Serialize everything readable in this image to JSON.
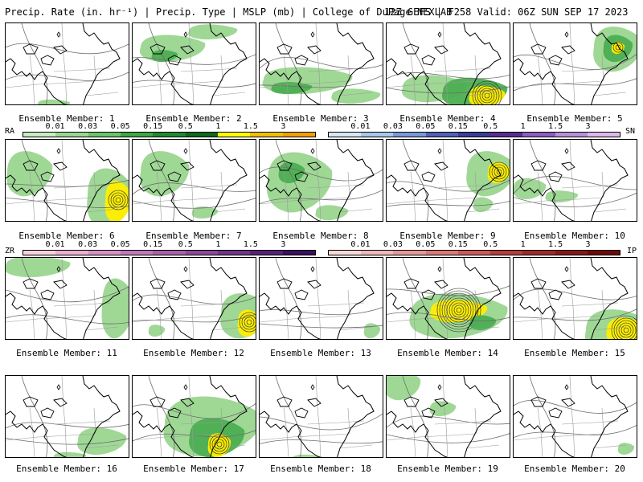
{
  "header": {
    "left_text": "Precip. Rate (in. hr⁻¹) | Precip. Type | MSLP (mb) | College of DuPage NEXLAB",
    "right_text": "12Z GEFS | F258 Valid: 06Z SUN SEP 17 2023"
  },
  "members": [
    "Ensemble Member: 1",
    "Ensemble Member: 2",
    "Ensemble Member: 3",
    "Ensemble Member: 4",
    "Ensemble Member: 5",
    "Ensemble Member: 6",
    "Ensemble Member: 7",
    "Ensemble Member: 8",
    "Ensemble Member: 9",
    "Ensemble Member: 10",
    "Ensemble Member: 11",
    "Ensemble Member: 12",
    "Ensemble Member: 13",
    "Ensemble Member: 14",
    "Ensemble Member: 15",
    "Ensemble Member: 16",
    "Ensemble Member: 17",
    "Ensemble Member: 18",
    "Ensemble Member: 19",
    "Ensemble Member: 20"
  ],
  "legends": {
    "ra": {
      "tag": "RA",
      "ticks": [
        "0.01",
        "0.03",
        "0.05",
        "0.15",
        "0.5",
        "1",
        "1.5",
        "3"
      ],
      "colors": [
        "#c8ecc4",
        "#98d890",
        "#6cc468",
        "#3ea844",
        "#1f8a30",
        "#0c6a1c",
        "#ffff00",
        "#f0c000",
        "#f0a000"
      ]
    },
    "sn": {
      "tag": "SN",
      "ticks": [
        "0.01",
        "0.03",
        "0.05",
        "0.15",
        "0.5",
        "1",
        "1.5",
        "3"
      ],
      "colors": [
        "#d6e8f8",
        "#a8c8ec",
        "#7898d8",
        "#5060b8",
        "#3c3c98",
        "#5a2c90",
        "#8c5cc0",
        "#b890d8",
        "#e0b8ec"
      ]
    },
    "zr": {
      "tag": "ZR",
      "ticks": [
        "0.01",
        "0.03",
        "0.05",
        "0.15",
        "0.5",
        "1",
        "1.5",
        "3"
      ],
      "colors": [
        "#f8d0e0",
        "#ecb0d0",
        "#d890c4",
        "#c078b8",
        "#a860a8",
        "#8c4898",
        "#703488",
        "#582078",
        "#3c0c60"
      ]
    },
    "ip": {
      "tag": "IP",
      "ticks": [
        "0.01",
        "0.03",
        "0.05",
        "0.15",
        "0.5",
        "1",
        "1.5",
        "3"
      ],
      "colors": [
        "#f8d8d8",
        "#f0b8b8",
        "#e89898",
        "#dc7878",
        "#cc5858",
        "#b83c3c",
        "#a02828",
        "#881818",
        "#700808"
      ]
    }
  },
  "colors": {
    "light_green": "#9ad68f",
    "mid_green": "#4cae52",
    "dark_green": "#1f8a30",
    "yellow": "#ffee00",
    "orange": "#f0b000",
    "isobar": "#6e6e6e",
    "coast": "#000000"
  }
}
